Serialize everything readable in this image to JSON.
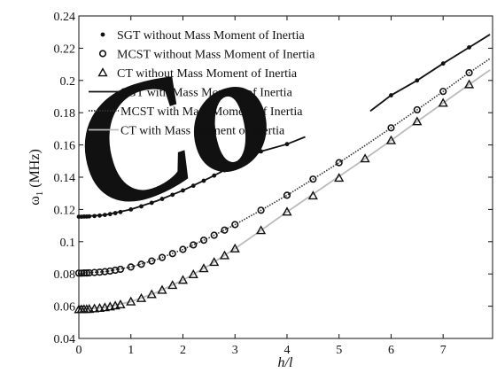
{
  "chart_data": {
    "type": "line",
    "xlabel": "h/l",
    "ylabel_main": "ω",
    "ylabel_sub": "1",
    "ylabel_unit": "(MHz)",
    "xlim": [
      0,
      7.95
    ],
    "ylim": [
      0.04,
      0.24
    ],
    "xticks": [
      0,
      1,
      2,
      3,
      4,
      5,
      6,
      7
    ],
    "xtick_labels": [
      "0",
      "1",
      "2",
      "3",
      "4",
      "5",
      "6",
      "7"
    ],
    "yticks": [
      0.04,
      0.06,
      0.08,
      0.1,
      0.12,
      0.14,
      0.16,
      0.18,
      0.2,
      0.22,
      0.24
    ],
    "ytick_labels": [
      "0.04",
      "0.06",
      "0.08",
      "0.1",
      "0.12",
      "0.14",
      "0.16",
      "0.18",
      "0.2",
      "0.22",
      "0.24"
    ],
    "legend_position": "top-left",
    "series": [
      {
        "name": "SGT without Mass Moment of Inertia",
        "kind": "markers",
        "marker": "dot",
        "color": "#111111",
        "x": [
          0,
          0.05,
          0.1,
          0.15,
          0.2,
          0.3,
          0.4,
          0.5,
          0.6,
          0.7,
          0.8,
          1.0,
          1.2,
          1.4,
          1.6,
          1.8,
          2.0,
          2.2,
          2.4,
          2.6,
          2.8,
          3.0,
          3.5,
          4.0,
          6.0,
          6.5,
          7.0,
          7.5
        ],
        "y": [
          0.1155,
          0.1155,
          0.1156,
          0.1156,
          0.1157,
          0.1159,
          0.1162,
          0.1166,
          0.1171,
          0.1177,
          0.1184,
          0.12,
          0.1219,
          0.1241,
          0.1265,
          0.1291,
          0.1318,
          0.1347,
          0.1378,
          0.141,
          0.1443,
          0.1477,
          0.156,
          0.1605,
          0.1908,
          0.2,
          0.2105,
          0.2205
        ]
      },
      {
        "name": "MCST without Mass Moment of Inertia",
        "kind": "markers",
        "marker": "circle",
        "color": "#111111",
        "x": [
          0,
          0.05,
          0.1,
          0.15,
          0.2,
          0.3,
          0.4,
          0.5,
          0.6,
          0.7,
          0.8,
          1.0,
          1.2,
          1.4,
          1.6,
          1.8,
          2.0,
          2.2,
          2.4,
          2.6,
          2.8,
          3.0,
          3.5,
          4.0,
          4.5,
          5.0,
          6.0,
          6.5,
          7.0,
          7.5
        ],
        "y": [
          0.0805,
          0.0805,
          0.0806,
          0.0806,
          0.0807,
          0.0809,
          0.0811,
          0.0814,
          0.0818,
          0.0823,
          0.0829,
          0.0843,
          0.086,
          0.088,
          0.0902,
          0.0926,
          0.0952,
          0.098,
          0.1009,
          0.104,
          0.1072,
          0.1106,
          0.1195,
          0.1288,
          0.1388,
          0.149,
          0.1706,
          0.1818,
          0.1932,
          0.2048
        ]
      },
      {
        "name": "CT without Mass Moment of Inertia",
        "kind": "markers",
        "marker": "triangle",
        "color": "#111111",
        "x": [
          0,
          0.05,
          0.1,
          0.15,
          0.2,
          0.3,
          0.4,
          0.5,
          0.6,
          0.7,
          0.8,
          1.0,
          1.2,
          1.4,
          1.6,
          1.8,
          2.0,
          2.2,
          2.4,
          2.6,
          2.8,
          3.0,
          3.5,
          4.0,
          4.5,
          5.0,
          5.5,
          6.0,
          6.5,
          7.0,
          7.5
        ],
        "y": [
          0.058,
          0.058,
          0.0581,
          0.0581,
          0.0582,
          0.0585,
          0.0588,
          0.0592,
          0.0597,
          0.0603,
          0.061,
          0.0628,
          0.0649,
          0.0673,
          0.07,
          0.073,
          0.0762,
          0.0797,
          0.0834,
          0.0873,
          0.0914,
          0.0957,
          0.107,
          0.1185,
          0.1285,
          0.1395,
          0.1515,
          0.1628,
          0.1745,
          0.186,
          0.1975
        ]
      },
      {
        "name": "SGT with Mass Moment of Inertia",
        "kind": "line",
        "style": "solid",
        "color": "#111111",
        "x": [
          0,
          0.5,
          1.0,
          1.5,
          2.0,
          2.5,
          3.0,
          3.5,
          4.0,
          4.35,
          5.6,
          6.0,
          6.5,
          7.0,
          7.5,
          7.9
        ],
        "y": [
          0.1155,
          0.1166,
          0.12,
          0.1253,
          0.1318,
          0.1394,
          0.1477,
          0.156,
          0.1605,
          0.165,
          0.181,
          0.1908,
          0.2,
          0.2105,
          0.2205,
          0.2285
        ],
        "segments": [
          [
            0,
            9
          ],
          [
            10,
            15
          ]
        ]
      },
      {
        "name": "MCST with Mass Moment of Inertia",
        "kind": "line",
        "style": "dotted",
        "color": "#333333",
        "x": [
          0,
          0.5,
          1.0,
          1.5,
          2.0,
          2.5,
          3.0,
          3.5,
          4.0,
          4.5,
          5.0,
          5.5,
          6.0,
          6.5,
          7.0,
          7.5,
          7.9
        ],
        "y": [
          0.0805,
          0.0814,
          0.0843,
          0.089,
          0.0952,
          0.1024,
          0.1106,
          0.1195,
          0.1288,
          0.1388,
          0.149,
          0.1596,
          0.1706,
          0.1818,
          0.1932,
          0.2048,
          0.2135
        ]
      },
      {
        "name": "CT with Mass Moment of Inertia",
        "kind": "line",
        "style": "solid",
        "color": "#bbbbbb",
        "x": [
          0,
          0.5,
          1.0,
          1.5,
          2.0,
          2.5,
          3.0,
          3.5,
          4.0,
          4.5,
          5.0,
          5.5,
          6.0,
          6.5,
          7.0,
          7.5,
          7.9
        ],
        "y": [
          0.058,
          0.0592,
          0.0628,
          0.0686,
          0.0762,
          0.0853,
          0.0957,
          0.107,
          0.1185,
          0.1295,
          0.1405,
          0.1515,
          0.1628,
          0.1745,
          0.186,
          0.1975,
          0.2065
        ]
      }
    ]
  },
  "watermark": {
    "text": "Co",
    "color": "#f6e3e8"
  }
}
